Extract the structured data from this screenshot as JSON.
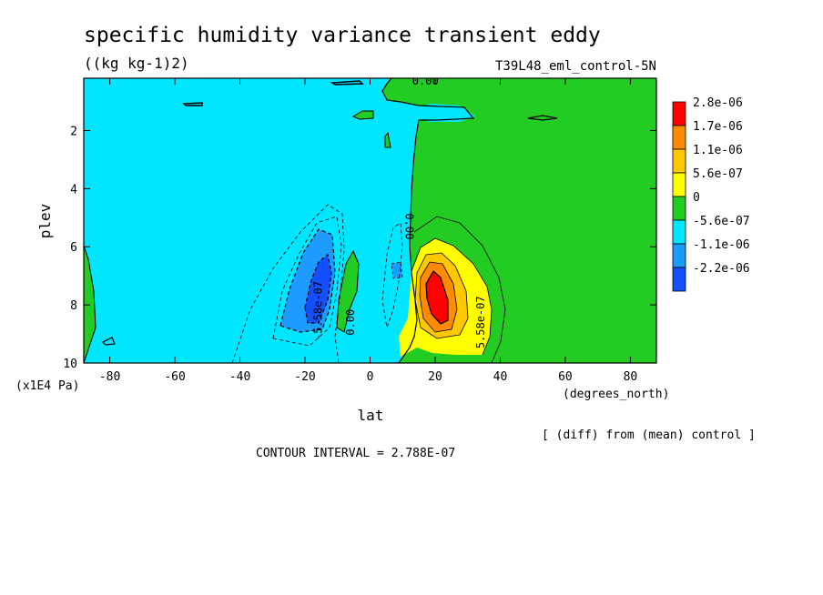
{
  "chart_data": {
    "type": "heatmap",
    "title": "specific humidity variance transient eddy",
    "units": "((kg kg-1)2)",
    "experiment": "T39L48_eml_control-5N",
    "xlabel": "lat",
    "xunits": "(degrees_north)",
    "ylabel": "plev",
    "yunits": "(x1E4 Pa)",
    "xlim": [
      -88,
      88
    ],
    "ylim": [
      10,
      0.2
    ],
    "xticks": [
      {
        "v": -80,
        "label": "-80"
      },
      {
        "v": -60,
        "label": "-60"
      },
      {
        "v": -40,
        "label": "-40"
      },
      {
        "v": -20,
        "label": "-20"
      },
      {
        "v": 0,
        "label": "0"
      },
      {
        "v": 20,
        "label": "20"
      },
      {
        "v": 40,
        "label": "40"
      },
      {
        "v": 60,
        "label": "60"
      },
      {
        "v": 80,
        "label": "80"
      }
    ],
    "yticks": [
      {
        "v": 2,
        "label": "2"
      },
      {
        "v": 4,
        "label": "4"
      },
      {
        "v": 6,
        "label": "6"
      },
      {
        "v": 8,
        "label": "8"
      },
      {
        "v": 10,
        "label": "10"
      }
    ],
    "legend": {
      "placement": "right",
      "entries": [
        {
          "label": "2.8e-06",
          "color": "#ff0000"
        },
        {
          "label": "1.7e-06",
          "color": "#ff8c00"
        },
        {
          "label": "1.1e-06",
          "color": "#ffc800"
        },
        {
          "label": "5.6e-07",
          "color": "#ffff00"
        },
        {
          "label": "0",
          "color": "#22cc22"
        },
        {
          "label": "-5.6e-07",
          "color": "#00e6ff"
        },
        {
          "label": "-1.1e-06",
          "color": "#1e9bff"
        },
        {
          "label": "-2.2e-06",
          "color": "#1450ff"
        }
      ]
    },
    "contour_labels": [
      {
        "text": "0.00",
        "lat": 17,
        "plev": 0.3,
        "rotate": 0
      },
      {
        "text": "0.00",
        "lat": 12,
        "plev": 5.3,
        "rotate": 90
      },
      {
        "text": "-5.58e-07",
        "lat": -16,
        "plev": 8.2,
        "rotate": -90
      },
      {
        "text": "0.00",
        "lat": -6,
        "plev": 8.6,
        "rotate": -90
      },
      {
        "text": "5.58e-07",
        "lat": 34,
        "plev": 8.6,
        "rotate": -90
      }
    ],
    "contour_interval": "CONTOUR INTERVAL = 2.788E-07",
    "note": "[ (diff) from (mean) control ]"
  }
}
